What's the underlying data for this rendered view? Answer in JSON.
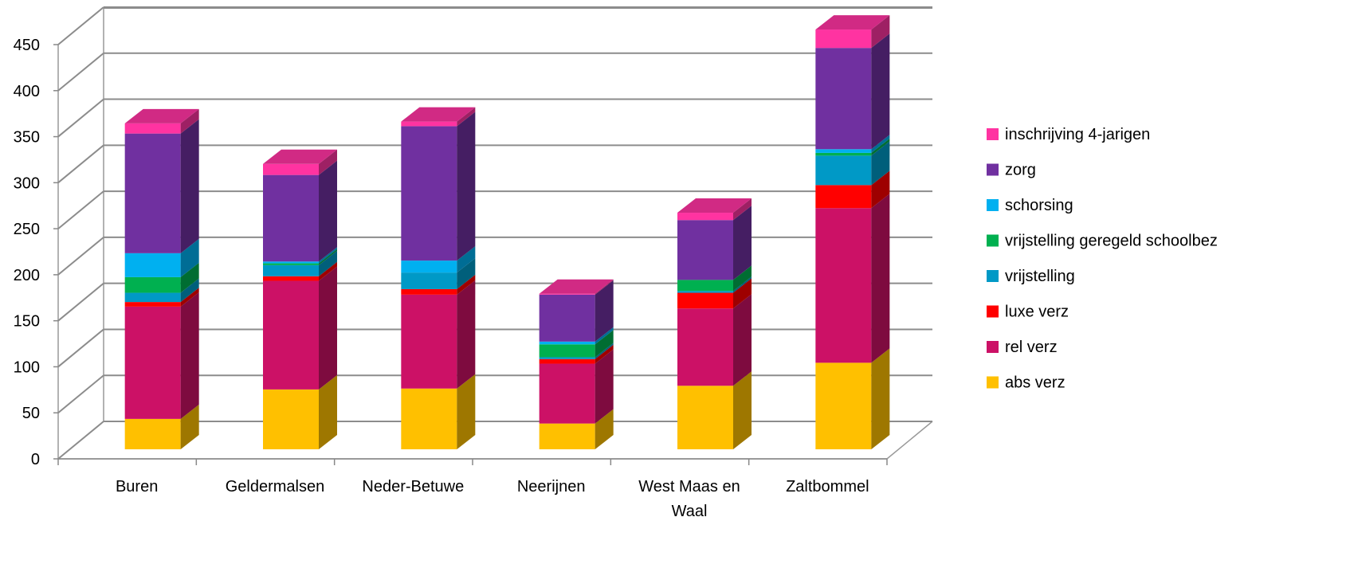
{
  "chart_data": {
    "type": "bar",
    "stacked": true,
    "three_d": true,
    "categories": [
      "Buren",
      "Geldermalsen",
      "Neder-Betuwe",
      "Neerijnen",
      "West Maas en Waal",
      "Zaltbommel"
    ],
    "series": [
      {
        "name": "abs verz",
        "color": "#FFC000",
        "values": [
          33,
          65,
          66,
          28,
          69,
          94
        ]
      },
      {
        "name": "rel verz",
        "color": "#CC1166",
        "values": [
          122,
          118,
          102,
          65,
          84,
          168
        ]
      },
      {
        "name": "luxe verz",
        "color": "#FF0000",
        "values": [
          5,
          5,
          6,
          5,
          17,
          25
        ]
      },
      {
        "name": "vrijstelling",
        "color": "#0099C6",
        "values": [
          10,
          12,
          18,
          2,
          2,
          32
        ]
      },
      {
        "name": "vrijstelling geregeld schoolbez",
        "color": "#00B050",
        "values": [
          17,
          2,
          0,
          14,
          12,
          3
        ]
      },
      {
        "name": "schorsing",
        "color": "#00B0F0",
        "values": [
          26,
          2,
          13,
          3,
          0,
          4
        ]
      },
      {
        "name": "zorg",
        "color": "#7030A0",
        "values": [
          130,
          94,
          146,
          51,
          65,
          110
        ]
      },
      {
        "name": "inschrijving 4-jarigen",
        "color": "#FF33A1",
        "values": [
          11,
          12,
          5,
          1,
          8,
          20
        ]
      }
    ],
    "y_ticks": [
      "0",
      "50",
      "100",
      "150",
      "200",
      "250",
      "300",
      "350",
      "400",
      "450"
    ],
    "ylim": [
      0,
      450
    ],
    "grid": true,
    "legend_position": "right",
    "title": "",
    "xlabel": "",
    "ylabel": ""
  }
}
